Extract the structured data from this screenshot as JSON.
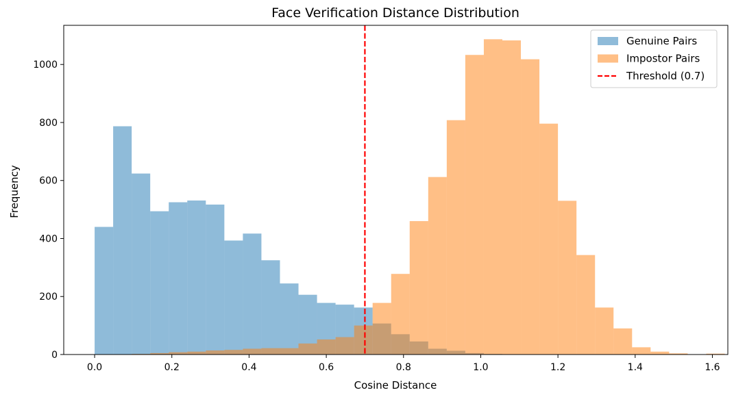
{
  "chart_data": {
    "type": "histogram",
    "title": "Face Verification Distance Distribution",
    "xlabel": "Cosine Distance",
    "ylabel": "Frequency",
    "xlim": [
      -0.08,
      1.64
    ],
    "ylim": [
      0,
      1135
    ],
    "x_ticks": [
      "0.0",
      "0.2",
      "0.4",
      "0.6",
      "0.8",
      "1.0",
      "1.2",
      "1.4",
      "1.6"
    ],
    "x_tick_values": [
      0.0,
      0.2,
      0.4,
      0.6,
      0.8,
      1.0,
      1.2,
      1.4,
      1.6
    ],
    "y_ticks": [
      "0",
      "200",
      "400",
      "600",
      "800",
      "1000"
    ],
    "y_tick_values": [
      0,
      200,
      400,
      600,
      800,
      1000
    ],
    "grid": false,
    "legend_position": "top-right",
    "series": [
      {
        "name": "Genuine Pairs",
        "color": "#1f77b4",
        "alpha": 0.5,
        "bin_start": 0.0,
        "bin_width": 0.048,
        "values": [
          440,
          787,
          624,
          494,
          525,
          531,
          517,
          393,
          417,
          325,
          245,
          206,
          178,
          172,
          162,
          107,
          70,
          45,
          20,
          13,
          5,
          2
        ]
      },
      {
        "name": "Impostor Pairs",
        "color": "#ff7f0e",
        "alpha": 0.5,
        "bin_start": 0.0,
        "bin_width": 0.048,
        "values": [
          0,
          0,
          2,
          5,
          8,
          10,
          14,
          16,
          20,
          22,
          22,
          38,
          52,
          60,
          100,
          178,
          278,
          460,
          612,
          808,
          1033,
          1087,
          1083,
          1018,
          796,
          530,
          343,
          162,
          90,
          25,
          10,
          4,
          0,
          3
        ]
      }
    ],
    "reference_lines": [
      {
        "name": "Threshold (0.7)",
        "x": 0.7,
        "color": "#ff0000",
        "style": "dashed"
      }
    ]
  }
}
